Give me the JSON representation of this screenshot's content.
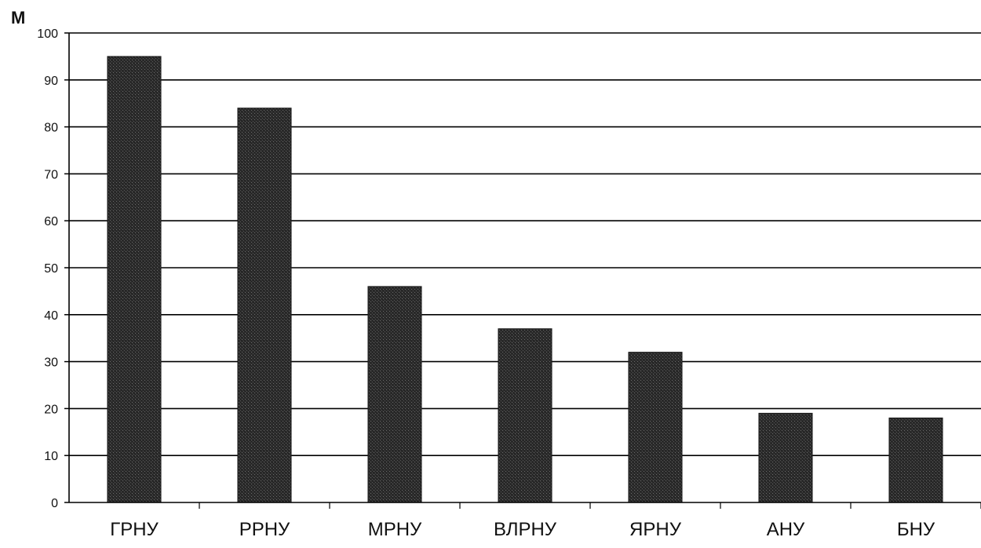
{
  "chart_data": {
    "type": "bar",
    "ylabel": "М",
    "xlabel": "",
    "ylim": [
      0,
      100
    ],
    "yticks": [
      0,
      10,
      20,
      30,
      40,
      50,
      60,
      70,
      80,
      90,
      100
    ],
    "grid": true,
    "categories": [
      "ГРНУ",
      "РРНУ",
      "МРНУ",
      "ВЛРНУ",
      "ЯРНУ",
      "АНУ",
      "БНУ"
    ],
    "values": [
      95,
      84,
      46,
      37,
      32,
      19,
      18
    ],
    "bar_color": "#2b2b2b",
    "grid_color": "#000000"
  }
}
